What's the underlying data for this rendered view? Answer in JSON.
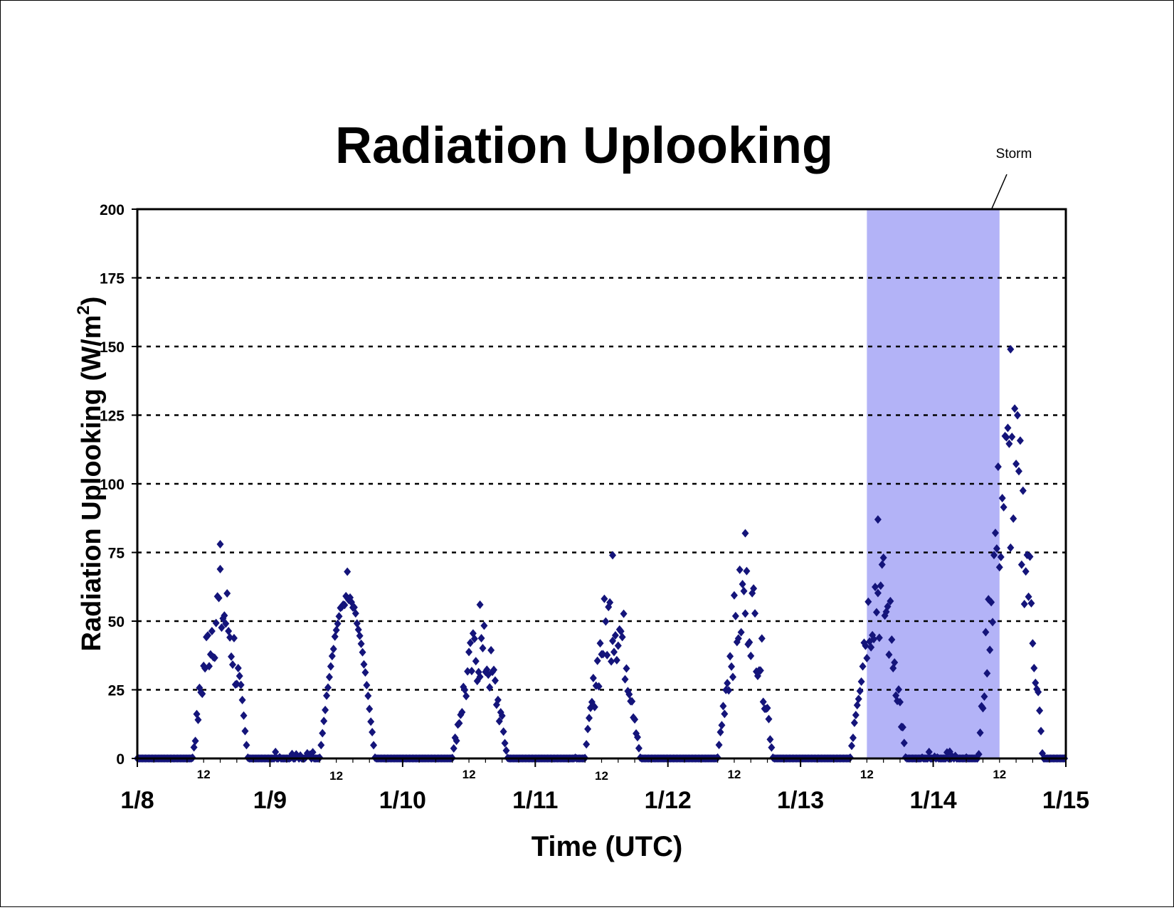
{
  "chart_data": {
    "type": "scatter",
    "title": "Radiation Uplooking",
    "xlabel": "Time (UTC)",
    "ylabel_prefix": "Radiation Uplooking (W/m",
    "ylabel_sup": "2",
    "ylabel_suffix": ")",
    "ylim": [
      0,
      200
    ],
    "yticks": [
      "0",
      "25",
      "50",
      "75",
      "100",
      "125",
      "150",
      "175",
      "200"
    ],
    "xlim_days": [
      0,
      7
    ],
    "x_ticks": [
      "1/8",
      "1/9",
      "1/10",
      "1/11",
      "1/12",
      "1/13",
      "1/14",
      "1/15"
    ],
    "x_minor_label": "12",
    "grid": "horizontal dotted",
    "annotation": {
      "text": "Storm",
      "x_start": "1/13 12:00",
      "x_end": "1/14 12:00"
    },
    "shade_color": "#b3b3f7",
    "marker_color": "#14147a",
    "series": [
      {
        "marker": "diamond",
        "peaks": [
          {
            "x": "1/8 15:00",
            "max": 78
          },
          {
            "x": "1/9 14:00",
            "max": 68
          },
          {
            "x": "1/10 14:00",
            "max": 56
          },
          {
            "x": "1/11 14:00",
            "max": 74
          },
          {
            "x": "1/12 14:00",
            "max": 82
          },
          {
            "x": "1/13 14:00",
            "max": 87
          },
          {
            "x": "1/14 14:00",
            "max": 149
          }
        ]
      }
    ]
  }
}
